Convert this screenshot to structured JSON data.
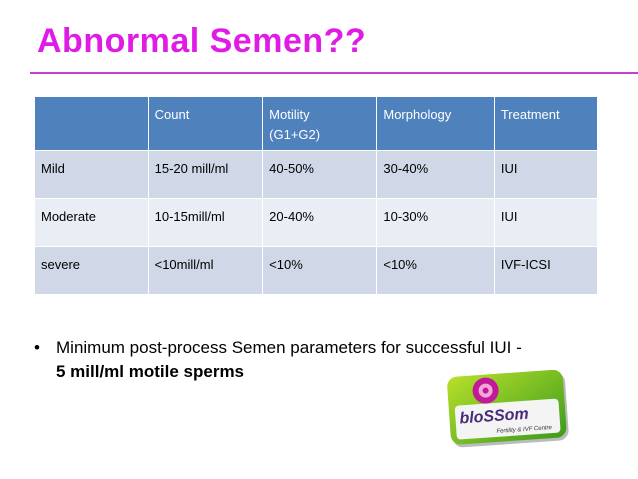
{
  "title": "Abnormal Semen??",
  "table": {
    "header": [
      "Count",
      "Motility\n(G1+G2)",
      "Morphology",
      "Treatment"
    ],
    "rows": [
      [
        "Mild",
        "15-20 mill/ml",
        "40-50%",
        "30-40%",
        "IUI"
      ],
      [
        "Moderate",
        "10-15mill/ml",
        "20-40%",
        "10-30%",
        "IUI"
      ],
      [
        "severe",
        "<10mill/ml",
        "<10%",
        "<10%",
        "IVF-ICSI"
      ]
    ]
  },
  "bullet": {
    "text": "Minimum post-process Semen parameters for successful IUI -",
    "bold": "5 mill/ml motile sperms"
  },
  "logo": {
    "name": "bloSSom",
    "tagline": "Fertility & IVF Centre"
  }
}
